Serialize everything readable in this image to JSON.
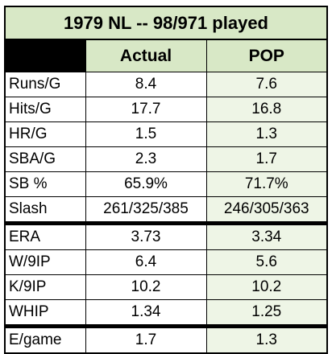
{
  "title": "1979 NL -- 98/971 played",
  "columns": {
    "actual": "Actual",
    "pop": "POP"
  },
  "rows": [
    {
      "label": "Runs/G",
      "actual": "8.4",
      "pop": "7.6"
    },
    {
      "label": "Hits/G",
      "actual": "17.7",
      "pop": "16.8"
    },
    {
      "label": "HR/G",
      "actual": "1.5",
      "pop": "1.3"
    },
    {
      "label": "SBA/G",
      "actual": "2.3",
      "pop": "1.7"
    },
    {
      "label": "SB %",
      "actual": "65.9%",
      "pop": "71.7%"
    },
    {
      "label": "Slash",
      "actual": "261/325/385",
      "pop": "246/305/363"
    },
    {
      "label": "ERA",
      "actual": "3.73",
      "pop": "3.34"
    },
    {
      "label": "W/9IP",
      "actual": "6.4",
      "pop": "5.6"
    },
    {
      "label": "K/9IP",
      "actual": "10.2",
      "pop": "10.2"
    },
    {
      "label": "WHIP",
      "actual": "1.34",
      "pop": "1.25"
    },
    {
      "label": "E/game",
      "actual": "1.7",
      "pop": "1.3"
    }
  ],
  "colors": {
    "header_green": "#d8e8c6",
    "pop_cell_green": "#eef5e6",
    "border": "#000000"
  }
}
